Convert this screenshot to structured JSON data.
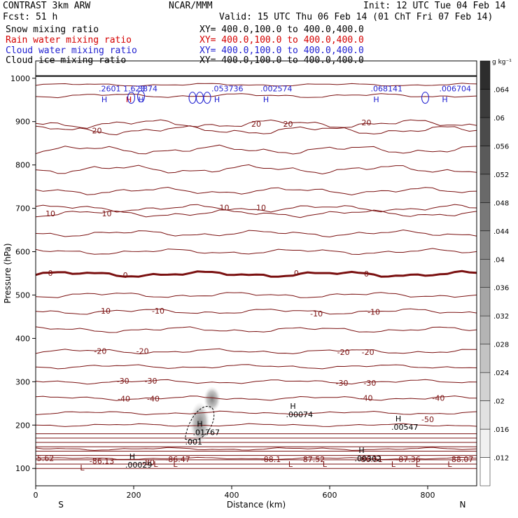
{
  "header": {
    "left_title": "CONTRAST  3km ARW",
    "center_title": "NCAR/MMM",
    "init": "Init: 12 UTC Tue 04 Feb 14",
    "fcst": "Fcst:   51 h",
    "valid": "Valid: 15 UTC Thu 06 Feb 14 (01 ChT Fri 07 Feb 14)",
    "rows": [
      {
        "field": "Snow mixing ratio",
        "xy": "XY= 400.0,100.0 to 400.0,400.0",
        "color": "#000000"
      },
      {
        "field": "Rain water mixing ratio",
        "xy": "XY= 400.0,100.0 to 400.0,400.0",
        "color": "#d40000"
      },
      {
        "field": "Cloud water mixing ratio",
        "xy": "XY= 400.0,100.0 to 400.0,400.0",
        "color": "#1f1fd0"
      },
      {
        "field": "Cloud ice mixing ratio",
        "xy": "XY= 400.0,100.0 to 400.0,400.0",
        "color": "#000000"
      }
    ]
  },
  "chart_data": {
    "type": "line",
    "xlabel": "Distance (km)",
    "ylabel": "Pressure (hPa)",
    "xlim": [
      0,
      900
    ],
    "ylim": [
      1040,
      60
    ],
    "x_ticks": [
      0,
      200,
      400,
      600,
      800
    ],
    "y_ticks": [
      100,
      200,
      300,
      400,
      500,
      600,
      700,
      800,
      900,
      1000
    ],
    "x_end_labels": {
      "left": "S",
      "right": "N"
    },
    "temperature_color": "#7a1010",
    "colorbar": {
      "unit": "g kg⁻¹",
      "labels": [
        ".012",
        ".016",
        ".02",
        ".024",
        ".028",
        ".032",
        ".036",
        ".04",
        ".044",
        ".048",
        ".052",
        ".056",
        ".06",
        ".064"
      ]
    },
    "temperature_labels": [
      {
        "text": "5.62",
        "x": 20,
        "p": 124
      },
      {
        "text": "-86.13",
        "x": 135,
        "p": 117
      },
      {
        "text": "-80",
        "x": 230,
        "p": 114
      },
      {
        "text": "-86.47",
        "x": 290,
        "p": 121
      },
      {
        "text": "-88.1",
        "x": 480,
        "p": 121
      },
      {
        "text": "-87.52",
        "x": 565,
        "p": 121
      },
      {
        "text": "-86.51",
        "x": 683,
        "p": 121
      },
      {
        "text": "-87.36",
        "x": 760,
        "p": 121
      },
      {
        "text": "-88.07",
        "x": 868,
        "p": 121
      },
      {
        "text": "-40",
        "x": 180,
        "p": 261
      },
      {
        "text": "-40",
        "x": 240,
        "p": 261
      },
      {
        "text": "-40",
        "x": 675,
        "p": 263
      },
      {
        "text": "-40",
        "x": 822,
        "p": 263
      },
      {
        "text": "-50",
        "x": 800,
        "p": 213
      },
      {
        "text": "-30",
        "x": 178,
        "p": 302
      },
      {
        "text": "-30",
        "x": 235,
        "p": 302
      },
      {
        "text": "-30",
        "x": 625,
        "p": 297
      },
      {
        "text": "-30",
        "x": 682,
        "p": 297
      },
      {
        "text": "-20",
        "x": 132,
        "p": 371
      },
      {
        "text": "-20",
        "x": 218,
        "p": 371
      },
      {
        "text": "-20",
        "x": 628,
        "p": 368
      },
      {
        "text": "-20",
        "x": 678,
        "p": 368
      },
      {
        "text": "-10",
        "x": 140,
        "p": 464
      },
      {
        "text": "-10",
        "x": 250,
        "p": 464
      },
      {
        "text": "-10",
        "x": 573,
        "p": 457
      },
      {
        "text": "-10",
        "x": 690,
        "p": 461
      },
      {
        "text": "0",
        "x": 30,
        "p": 551
      },
      {
        "text": "0",
        "x": 183,
        "p": 546
      },
      {
        "text": "0",
        "x": 532,
        "p": 551
      },
      {
        "text": "0",
        "x": 675,
        "p": 549
      },
      {
        "text": "10",
        "x": 30,
        "p": 688
      },
      {
        "text": "10",
        "x": 145,
        "p": 688
      },
      {
        "text": "10",
        "x": 385,
        "p": 702
      },
      {
        "text": "10",
        "x": 460,
        "p": 702
      },
      {
        "text": "20",
        "x": 125,
        "p": 879
      },
      {
        "text": "20",
        "x": 450,
        "p": 895
      },
      {
        "text": "20",
        "x": 515,
        "p": 895
      },
      {
        "text": "20",
        "x": 675,
        "p": 898
      }
    ],
    "extrema": [
      {
        "letter": "L",
        "x": 95,
        "p": 102
      },
      {
        "letter": "L",
        "x": 245,
        "p": 110
      },
      {
        "letter": "L",
        "x": 285,
        "p": 110
      },
      {
        "letter": "L",
        "x": 520,
        "p": 110
      },
      {
        "letter": "L",
        "x": 590,
        "p": 110
      },
      {
        "letter": "L",
        "x": 730,
        "p": 110
      },
      {
        "letter": "L",
        "x": 780,
        "p": 110
      },
      {
        "letter": "L",
        "x": 845,
        "p": 110
      },
      {
        "letter": "H",
        "x": 197,
        "p": 128,
        "value": ".00029"
      },
      {
        "letter": "H",
        "x": 335,
        "p": 203,
        "value": ".01767"
      },
      {
        "letter": "H",
        "x": 525,
        "p": 244,
        "value": ".00074"
      },
      {
        "letter": "H",
        "x": 665,
        "p": 142,
        "value": ".00302"
      },
      {
        "letter": "H",
        "x": 740,
        "p": 215,
        "value": ".00547"
      }
    ],
    "cloud_ice_labels": [
      {
        "text": ".001",
        "x": 305,
        "p": 162
      }
    ],
    "cloud_water_maxima": [
      {
        "x": 140,
        "value": ".2601"
      },
      {
        "x": 190,
        "value": "1.623"
      },
      {
        "x": 215,
        "value": ".3874"
      },
      {
        "x": 370,
        "value": ".053736"
      },
      {
        "x": 470,
        "value": ".002574"
      },
      {
        "x": 695,
        "value": ".068141"
      },
      {
        "x": 835,
        "value": ".006704"
      }
    ],
    "rain_water_maxima": [
      {
        "x": 190,
        "value": "H"
      }
    ]
  }
}
